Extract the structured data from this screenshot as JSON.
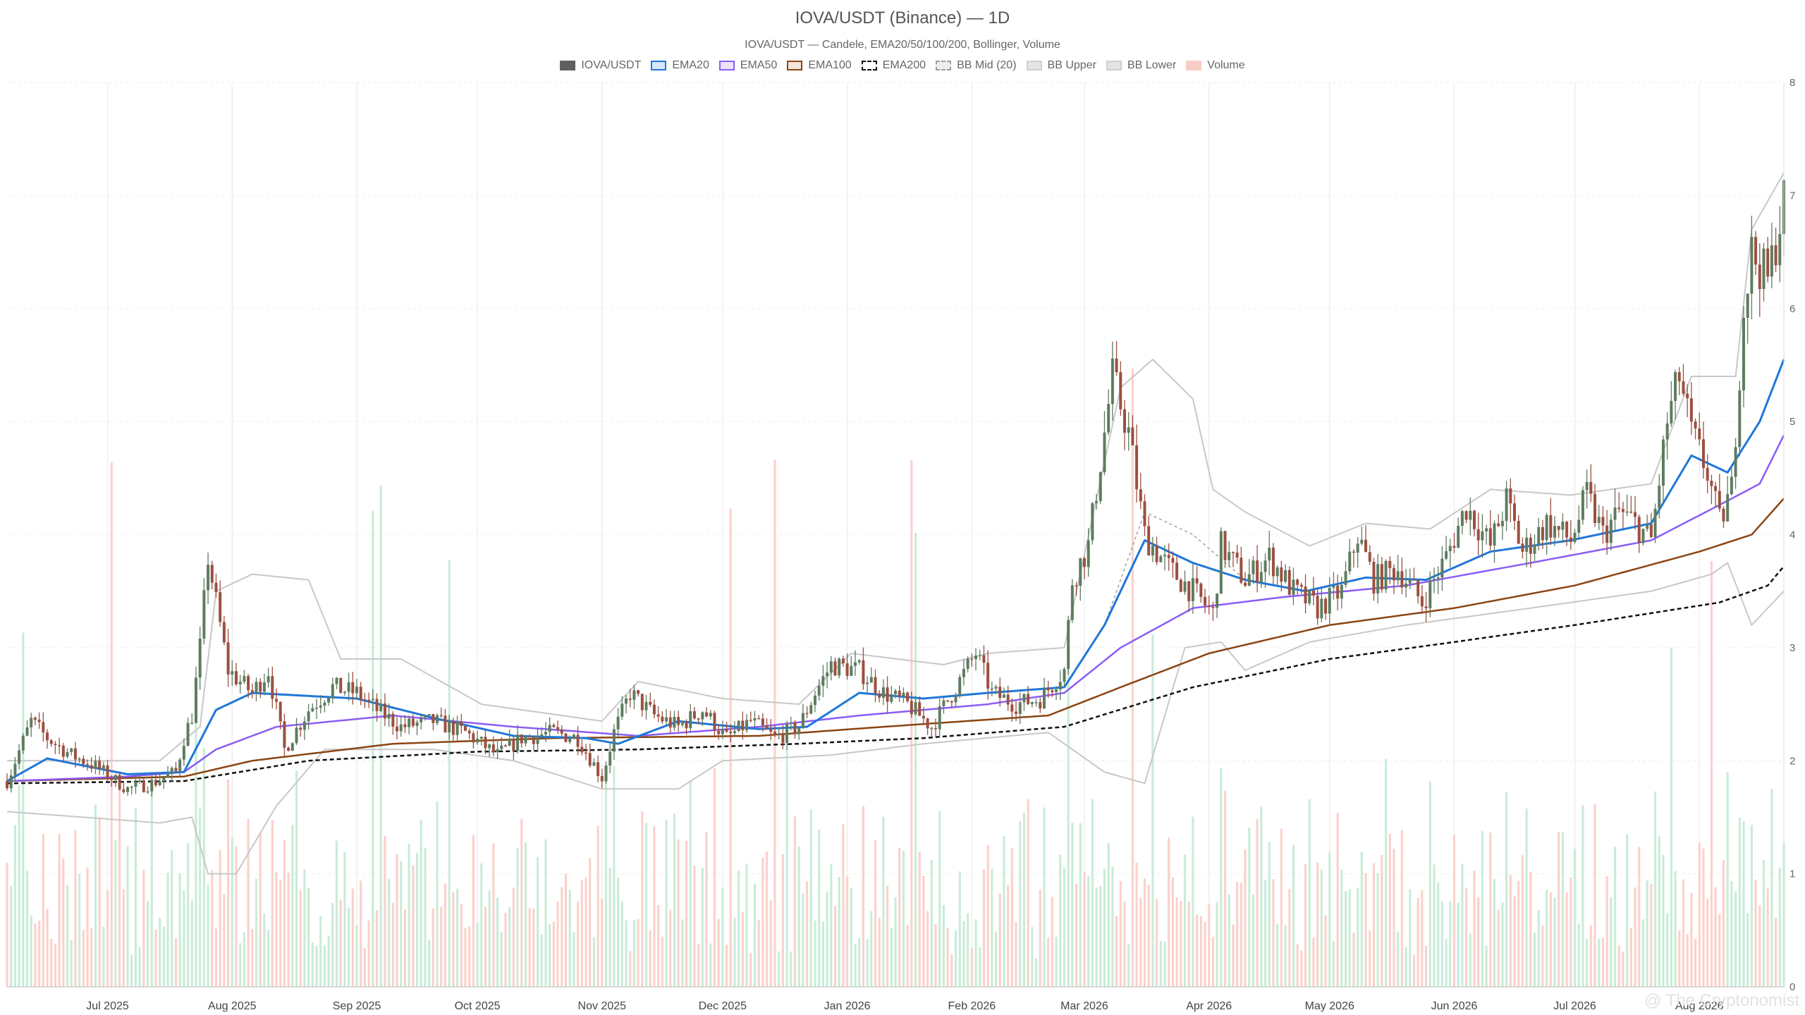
{
  "header": {
    "title": "IOVA/USDT (Binance) — 1D",
    "subtitle": "IOVA/USDT — Candele, EMA20/50/100/200, Bollinger, Volume"
  },
  "legend": [
    {
      "label": "IOVA/USDT",
      "fill": "#606060",
      "border": "#606060",
      "style": "solid"
    },
    {
      "label": "EMA20",
      "fill": "#d6e7f7",
      "border": "#1f77d9",
      "style": "solid"
    },
    {
      "label": "EMA50",
      "fill": "#ece3fb",
      "border": "#8b5cf6",
      "style": "solid"
    },
    {
      "label": "EMA100",
      "fill": "#f3e6de",
      "border": "#8b4513",
      "style": "solid"
    },
    {
      "label": "EMA200",
      "fill": "#ffffff",
      "border": "#111111",
      "style": "dashed"
    },
    {
      "label": "BB Mid (20)",
      "fill": "#eeeeee",
      "border": "#9e9e9e",
      "style": "dashed"
    },
    {
      "label": "BB Upper",
      "fill": "#e4e4e4",
      "border": "#cfcfcf",
      "style": "solid"
    },
    {
      "label": "BB Lower",
      "fill": "#e4e4e4",
      "border": "#cfcfcf",
      "style": "solid"
    },
    {
      "label": "Volume",
      "fill": "#f9cdc7",
      "border": "#f9cdc7",
      "style": "solid"
    }
  ],
  "watermark": "@ The Cryptonomist",
  "chart_data": {
    "type": "candlestick",
    "x_range": [
      "2025-06-06",
      "2026-08-22"
    ],
    "y_right_ticks": [
      0,
      1,
      2,
      3,
      4,
      5,
      6,
      7,
      8
    ],
    "ylim": [
      0,
      8
    ],
    "x_ticks": [
      {
        "date": "2025-07-01",
        "label": "Jul 2025"
      },
      {
        "date": "2025-08-01",
        "label": "Aug 2025"
      },
      {
        "date": "2025-09-01",
        "label": "Sep 2025"
      },
      {
        "date": "2025-10-01",
        "label": "Oct 2025"
      },
      {
        "date": "2025-11-01",
        "label": "Nov 2025"
      },
      {
        "date": "2025-12-01",
        "label": "Dec 2025"
      },
      {
        "date": "2026-01-01",
        "label": "Jan 2026"
      },
      {
        "date": "2026-02-01",
        "label": "Feb 2026"
      },
      {
        "date": "2026-03-01",
        "label": "Mar 2026"
      },
      {
        "date": "2026-04-01",
        "label": "Apr 2026"
      },
      {
        "date": "2026-05-01",
        "label": "May 2026"
      },
      {
        "date": "2026-06-01",
        "label": "Jun 2026"
      },
      {
        "date": "2026-07-01",
        "label": "Jul 2026"
      },
      {
        "date": "2026-08-01",
        "label": "Aug 2026"
      }
    ],
    "colors": {
      "up": "#5e7c60",
      "down": "#9b5040",
      "vol_up": "#c9ecd8",
      "vol_down": "#fbd1cb",
      "ema20": "#1f77d9",
      "ema50": "#8b5cf6",
      "ema100": "#8b4513",
      "ema200": "#111111",
      "bb": "#c8c8c8",
      "bb_mid": "#a0a0a0",
      "grid": "#eeeeee"
    },
    "price_path": [
      [
        "2025-06-06",
        1.82
      ],
      [
        "2025-06-12",
        2.35
      ],
      [
        "2025-06-16",
        2.2
      ],
      [
        "2025-06-22",
        2.05
      ],
      [
        "2025-06-28",
        1.95
      ],
      [
        "2025-07-06",
        1.75
      ],
      [
        "2025-07-12",
        1.8
      ],
      [
        "2025-07-18",
        1.9
      ],
      [
        "2025-07-20",
        2.2
      ],
      [
        "2025-07-22",
        2.4
      ],
      [
        "2025-07-24",
        3.0
      ],
      [
        "2025-07-26",
        3.8
      ],
      [
        "2025-07-28",
        3.4
      ],
      [
        "2025-07-31",
        2.8
      ],
      [
        "2025-08-06",
        2.6
      ],
      [
        "2025-08-10",
        2.8
      ],
      [
        "2025-08-14",
        2.1
      ],
      [
        "2025-08-20",
        2.45
      ],
      [
        "2025-08-26",
        2.65
      ],
      [
        "2025-09-01",
        2.6
      ],
      [
        "2025-09-06",
        2.45
      ],
      [
        "2025-09-12",
        2.3
      ],
      [
        "2025-09-20",
        2.35
      ],
      [
        "2025-09-28",
        2.25
      ],
      [
        "2025-10-06",
        2.05
      ],
      [
        "2025-10-12",
        2.2
      ],
      [
        "2025-10-20",
        2.25
      ],
      [
        "2025-10-26",
        2.2
      ],
      [
        "2025-11-01",
        1.85
      ],
      [
        "2025-11-04",
        2.25
      ],
      [
        "2025-11-08",
        2.6
      ],
      [
        "2025-11-14",
        2.4
      ],
      [
        "2025-11-20",
        2.3
      ],
      [
        "2025-11-26",
        2.45
      ],
      [
        "2025-12-02",
        2.2
      ],
      [
        "2025-12-08",
        2.35
      ],
      [
        "2025-12-14",
        2.2
      ],
      [
        "2025-12-20",
        2.3
      ],
      [
        "2025-12-24",
        2.6
      ],
      [
        "2025-12-28",
        2.85
      ],
      [
        "2026-01-04",
        2.8
      ],
      [
        "2026-01-10",
        2.6
      ],
      [
        "2026-01-16",
        2.5
      ],
      [
        "2026-01-22",
        2.3
      ],
      [
        "2026-01-28",
        2.65
      ],
      [
        "2026-02-02",
        2.95
      ],
      [
        "2026-02-06",
        2.6
      ],
      [
        "2026-02-12",
        2.5
      ],
      [
        "2026-02-18",
        2.55
      ],
      [
        "2026-02-24",
        2.8
      ],
      [
        "2026-02-26",
        3.6
      ],
      [
        "2026-03-02",
        3.9
      ],
      [
        "2026-03-06",
        4.9
      ],
      [
        "2026-03-08",
        5.4
      ],
      [
        "2026-03-12",
        4.9
      ],
      [
        "2026-03-16",
        4.0
      ],
      [
        "2026-03-22",
        3.7
      ],
      [
        "2026-03-28",
        3.5
      ],
      [
        "2026-04-02",
        3.3
      ],
      [
        "2026-04-04",
        3.9
      ],
      [
        "2026-04-10",
        3.6
      ],
      [
        "2026-04-16",
        3.8
      ],
      [
        "2026-04-22",
        3.5
      ],
      [
        "2026-04-28",
        3.35
      ],
      [
        "2026-05-04",
        3.5
      ],
      [
        "2026-05-08",
        4.0
      ],
      [
        "2026-05-12",
        3.6
      ],
      [
        "2026-05-18",
        3.7
      ],
      [
        "2026-05-24",
        3.4
      ],
      [
        "2026-05-30",
        3.8
      ],
      [
        "2026-06-04",
        4.25
      ],
      [
        "2026-06-10",
        3.9
      ],
      [
        "2026-06-14",
        4.3
      ],
      [
        "2026-06-18",
        3.85
      ],
      [
        "2026-06-24",
        4.1
      ],
      [
        "2026-06-30",
        3.95
      ],
      [
        "2026-07-04",
        4.35
      ],
      [
        "2026-07-08",
        4.0
      ],
      [
        "2026-07-12",
        4.2
      ],
      [
        "2026-07-16",
        4.1
      ],
      [
        "2026-07-20",
        3.95
      ],
      [
        "2026-07-24",
        5.0
      ],
      [
        "2026-07-27",
        5.4
      ],
      [
        "2026-07-30",
        4.9
      ],
      [
        "2026-08-03",
        4.55
      ],
      [
        "2026-08-06",
        4.1
      ],
      [
        "2026-08-09",
        4.4
      ],
      [
        "2026-08-12",
        6.0
      ],
      [
        "2026-08-14",
        6.5
      ],
      [
        "2026-08-18",
        6.25
      ],
      [
        "2026-08-22",
        6.95
      ]
    ],
    "ema_path": {
      "ema20": [
        [
          "2025-06-06",
          1.82
        ],
        [
          "2025-06-16",
          2.02
        ],
        [
          "2025-07-06",
          1.88
        ],
        [
          "2025-07-20",
          1.9
        ],
        [
          "2025-07-28",
          2.45
        ],
        [
          "2025-08-06",
          2.6
        ],
        [
          "2025-09-01",
          2.55
        ],
        [
          "2025-09-20",
          2.38
        ],
        [
          "2025-10-10",
          2.22
        ],
        [
          "2025-10-28",
          2.2
        ],
        [
          "2025-11-05",
          2.15
        ],
        [
          "2025-11-20",
          2.35
        ],
        [
          "2025-12-10",
          2.28
        ],
        [
          "2025-12-22",
          2.3
        ],
        [
          "2026-01-04",
          2.6
        ],
        [
          "2026-01-20",
          2.55
        ],
        [
          "2026-02-05",
          2.6
        ],
        [
          "2026-02-24",
          2.65
        ],
        [
          "2026-03-06",
          3.2
        ],
        [
          "2026-03-16",
          3.95
        ],
        [
          "2026-03-28",
          3.75
        ],
        [
          "2026-04-10",
          3.6
        ],
        [
          "2026-04-25",
          3.5
        ],
        [
          "2026-05-10",
          3.62
        ],
        [
          "2026-05-25",
          3.6
        ],
        [
          "2026-06-10",
          3.85
        ],
        [
          "2026-06-30",
          3.95
        ],
        [
          "2026-07-20",
          4.1
        ],
        [
          "2026-07-30",
          4.7
        ],
        [
          "2026-08-08",
          4.55
        ],
        [
          "2026-08-16",
          5.0
        ],
        [
          "2026-08-22",
          5.55
        ]
      ],
      "ema50": [
        [
          "2025-06-06",
          1.82
        ],
        [
          "2025-07-06",
          1.86
        ],
        [
          "2025-07-20",
          1.9
        ],
        [
          "2025-07-28",
          2.1
        ],
        [
          "2025-08-12",
          2.3
        ],
        [
          "2025-09-10",
          2.4
        ],
        [
          "2025-10-10",
          2.3
        ],
        [
          "2025-11-10",
          2.22
        ],
        [
          "2025-12-10",
          2.3
        ],
        [
          "2026-01-04",
          2.4
        ],
        [
          "2026-02-05",
          2.5
        ],
        [
          "2026-02-24",
          2.6
        ],
        [
          "2026-03-10",
          3.0
        ],
        [
          "2026-03-28",
          3.35
        ],
        [
          "2026-04-20",
          3.45
        ],
        [
          "2026-05-20",
          3.55
        ],
        [
          "2026-06-20",
          3.75
        ],
        [
          "2026-07-20",
          3.95
        ],
        [
          "2026-08-08",
          4.3
        ],
        [
          "2026-08-16",
          4.45
        ],
        [
          "2026-08-22",
          4.88
        ]
      ],
      "ema100": [
        [
          "2025-06-06",
          1.82
        ],
        [
          "2025-07-20",
          1.86
        ],
        [
          "2025-08-06",
          2.0
        ],
        [
          "2025-09-10",
          2.15
        ],
        [
          "2025-10-20",
          2.2
        ],
        [
          "2025-12-10",
          2.22
        ],
        [
          "2026-01-10",
          2.3
        ],
        [
          "2026-02-20",
          2.4
        ],
        [
          "2026-03-10",
          2.65
        ],
        [
          "2026-04-01",
          2.95
        ],
        [
          "2026-05-01",
          3.2
        ],
        [
          "2026-06-01",
          3.35
        ],
        [
          "2026-07-01",
          3.55
        ],
        [
          "2026-08-01",
          3.85
        ],
        [
          "2026-08-14",
          4.0
        ],
        [
          "2026-08-22",
          4.32
        ]
      ],
      "ema200": [
        [
          "2025-06-06",
          1.8
        ],
        [
          "2025-07-20",
          1.82
        ],
        [
          "2025-08-20",
          2.0
        ],
        [
          "2025-10-01",
          2.08
        ],
        [
          "2025-11-10",
          2.1
        ],
        [
          "2025-12-20",
          2.15
        ],
        [
          "2026-01-20",
          2.2
        ],
        [
          "2026-02-24",
          2.3
        ],
        [
          "2026-03-28",
          2.65
        ],
        [
          "2026-05-01",
          2.9
        ],
        [
          "2026-06-01",
          3.05
        ],
        [
          "2026-07-01",
          3.2
        ],
        [
          "2026-08-06",
          3.4
        ],
        [
          "2026-08-18",
          3.55
        ],
        [
          "2026-08-22",
          3.72
        ]
      ]
    },
    "bb_path": {
      "upper": [
        [
          "2025-06-06",
          2.0
        ],
        [
          "2025-07-14",
          2.0
        ],
        [
          "2025-07-24",
          2.3
        ],
        [
          "2025-07-28",
          3.5
        ],
        [
          "2025-08-06",
          3.65
        ],
        [
          "2025-08-20",
          3.6
        ],
        [
          "2025-08-28",
          2.9
        ],
        [
          "2025-09-12",
          2.9
        ],
        [
          "2025-10-02",
          2.5
        ],
        [
          "2025-11-01",
          2.35
        ],
        [
          "2025-11-10",
          2.7
        ],
        [
          "2025-12-01",
          2.55
        ],
        [
          "2025-12-20",
          2.5
        ],
        [
          "2026-01-02",
          2.95
        ],
        [
          "2026-01-25",
          2.85
        ],
        [
          "2026-02-05",
          2.95
        ],
        [
          "2026-02-24",
          3.0
        ],
        [
          "2026-03-10",
          5.3
        ],
        [
          "2026-03-18",
          5.55
        ],
        [
          "2026-03-28",
          5.2
        ],
        [
          "2026-04-02",
          4.4
        ],
        [
          "2026-04-10",
          4.2
        ],
        [
          "2026-04-26",
          3.9
        ],
        [
          "2026-05-10",
          4.1
        ],
        [
          "2026-05-26",
          4.05
        ],
        [
          "2026-06-10",
          4.4
        ],
        [
          "2026-06-30",
          4.35
        ],
        [
          "2026-07-20",
          4.45
        ],
        [
          "2026-07-30",
          5.4
        ],
        [
          "2026-08-10",
          5.4
        ],
        [
          "2026-08-14",
          6.7
        ],
        [
          "2026-08-22",
          7.2
        ]
      ],
      "lower": [
        [
          "2025-06-06",
          1.55
        ],
        [
          "2025-07-14",
          1.45
        ],
        [
          "2025-07-22",
          1.5
        ],
        [
          "2025-07-26",
          1.0
        ],
        [
          "2025-08-02",
          1.0
        ],
        [
          "2025-08-12",
          1.6
        ],
        [
          "2025-08-24",
          2.1
        ],
        [
          "2025-09-20",
          2.1
        ],
        [
          "2025-10-10",
          2.0
        ],
        [
          "2025-11-01",
          1.75
        ],
        [
          "2025-11-20",
          1.75
        ],
        [
          "2025-12-01",
          2.0
        ],
        [
          "2025-12-28",
          2.05
        ],
        [
          "2026-01-20",
          2.15
        ],
        [
          "2026-02-20",
          2.25
        ],
        [
          "2026-03-06",
          1.9
        ],
        [
          "2026-03-16",
          1.8
        ],
        [
          "2026-03-26",
          3.0
        ],
        [
          "2026-04-04",
          3.05
        ],
        [
          "2026-04-10",
          2.8
        ],
        [
          "2026-04-26",
          3.05
        ],
        [
          "2026-05-20",
          3.2
        ],
        [
          "2026-06-20",
          3.35
        ],
        [
          "2026-07-20",
          3.5
        ],
        [
          "2026-08-04",
          3.65
        ],
        [
          "2026-08-08",
          3.75
        ],
        [
          "2026-08-14",
          3.2
        ],
        [
          "2026-08-22",
          3.5
        ]
      ]
    }
  }
}
